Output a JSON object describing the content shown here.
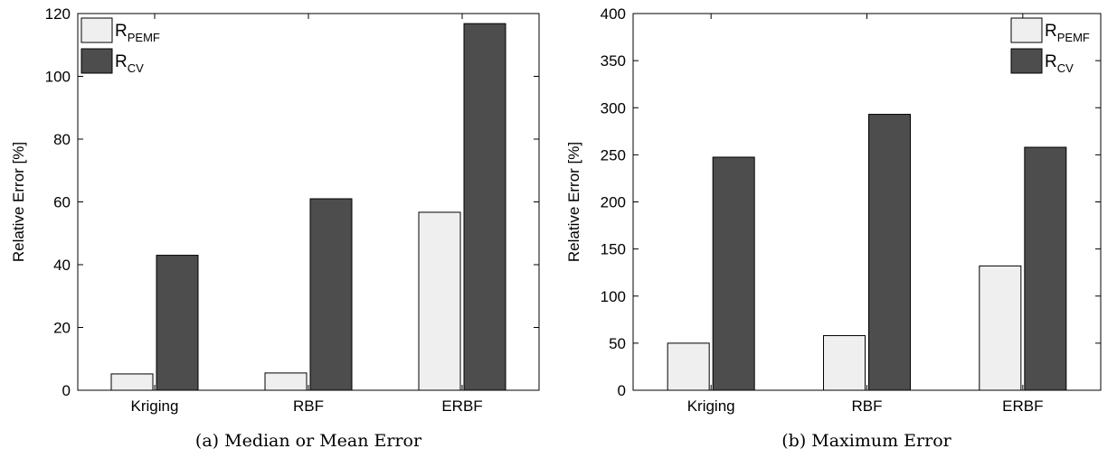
{
  "colors": {
    "r_pemf": "#efefef",
    "r_cv": "#4d4d4d",
    "frame": "#000000"
  },
  "chart_data": [
    {
      "type": "bar",
      "caption": "(a) Median or Mean Error",
      "ylabel": "Relative Error [%]",
      "ylim": [
        0,
        120
      ],
      "yticks": [
        0,
        20,
        40,
        60,
        80,
        100,
        120
      ],
      "categories": [
        "Kriging",
        "RBF",
        "ERBF"
      ],
      "legend_position": "top-left",
      "series": [
        {
          "name": "R",
          "name_sub": "PEMF",
          "color": "#efefef",
          "values": [
            5.2,
            5.5,
            56.7
          ]
        },
        {
          "name": "R",
          "name_sub": "CV",
          "color": "#4d4d4d",
          "values": [
            43.0,
            61.0,
            116.8
          ]
        }
      ]
    },
    {
      "type": "bar",
      "caption": "(b) Maximum Error",
      "ylabel": "Relative Error [%]",
      "ylim": [
        0,
        400
      ],
      "yticks": [
        0,
        50,
        100,
        150,
        200,
        250,
        300,
        350,
        400
      ],
      "categories": [
        "Kriging",
        "RBF",
        "ERBF"
      ],
      "legend_position": "top-right",
      "series": [
        {
          "name": "R",
          "name_sub": "PEMF",
          "color": "#efefef",
          "values": [
            50,
            58,
            132
          ]
        },
        {
          "name": "R",
          "name_sub": "CV",
          "color": "#4d4d4d",
          "values": [
            247.5,
            293,
            258
          ]
        }
      ]
    }
  ]
}
